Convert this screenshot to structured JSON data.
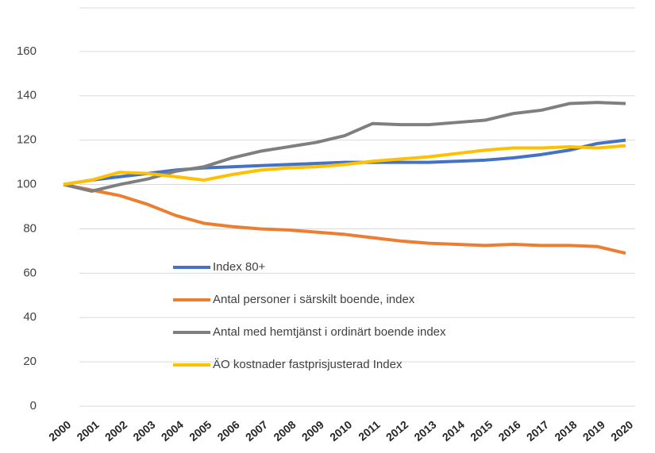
{
  "chart_data": {
    "type": "line",
    "x": [
      "2000",
      "2001",
      "2002",
      "2003",
      "2004",
      "2005",
      "2006",
      "2007",
      "2008",
      "2009",
      "2010",
      "2011",
      "2012",
      "2013",
      "2014",
      "2015",
      "2016",
      "2017",
      "2018",
      "2019",
      "2020"
    ],
    "series": [
      {
        "name": "Index 80+",
        "color": "#4472c4",
        "values": [
          100,
          102,
          103.5,
          105,
          106.5,
          107.5,
          108,
          108.5,
          109,
          109.5,
          110,
          110,
          110,
          110,
          110.5,
          111,
          112,
          113.5,
          115.5,
          118.5,
          120
        ]
      },
      {
        "name": "Antal personer i särskilt boende, index",
        "color": "#ed7d31",
        "values": [
          100,
          97.5,
          95,
          91,
          86,
          82.5,
          81,
          80,
          79.5,
          78.5,
          77.5,
          76,
          74.5,
          73.5,
          73,
          72.5,
          73,
          72.5,
          72.5,
          72,
          69
        ]
      },
      {
        "name": "Antal med hemtjänst i ordinärt boende index",
        "color": "#7f7f7f",
        "values": [
          100,
          97,
          100,
          102.5,
          106,
          108,
          112,
          115,
          117,
          119,
          122,
          127.5,
          127,
          127,
          128,
          129,
          132,
          133.5,
          136.5,
          137,
          136.5
        ]
      },
      {
        "name": "ÄO kostnader fastprisjusterad Index",
        "color": "#ffc000",
        "values": [
          100,
          102,
          105.5,
          105,
          103.5,
          102,
          104.5,
          106.5,
          107.5,
          108,
          109,
          110.5,
          111.5,
          112.5,
          114,
          115.5,
          116.5,
          116.5,
          117,
          116.5,
          117.5
        ]
      }
    ],
    "ylim": [
      0,
      180
    ],
    "yticks": [
      0,
      20,
      40,
      60,
      80,
      100,
      120,
      140,
      160
    ],
    "grid": true,
    "legend": "inside-left"
  }
}
